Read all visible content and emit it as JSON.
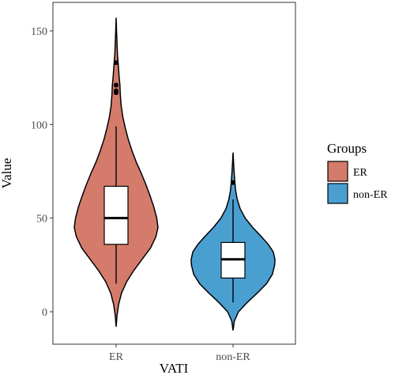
{
  "chart_data": {
    "type": "violin",
    "title": "",
    "xlabel": "VATI",
    "ylabel": "Value",
    "categories": [
      "ER",
      "non-ER"
    ],
    "ylim": [
      -15,
      160
    ],
    "yticks": [
      0,
      50,
      100,
      150
    ],
    "grid": false,
    "legend": {
      "title": "Groups",
      "position": "right",
      "entries": [
        "ER",
        "non-ER"
      ]
    },
    "series": [
      {
        "name": "ER",
        "color": "#d47b6b",
        "box": {
          "lower_whisker": 15,
          "q1": 36,
          "median": 50,
          "q3": 67,
          "upper_whisker": 99
        },
        "outliers": [
          117,
          118,
          121,
          121,
          133
        ],
        "density": [
          [
            -8,
            0.0
          ],
          [
            -2,
            0.02
          ],
          [
            4,
            0.06
          ],
          [
            10,
            0.13
          ],
          [
            16,
            0.25
          ],
          [
            22,
            0.42
          ],
          [
            28,
            0.62
          ],
          [
            34,
            0.82
          ],
          [
            40,
            0.95
          ],
          [
            45,
            1.0
          ],
          [
            50,
            0.97
          ],
          [
            56,
            0.9
          ],
          [
            62,
            0.81
          ],
          [
            68,
            0.71
          ],
          [
            74,
            0.6
          ],
          [
            80,
            0.48
          ],
          [
            86,
            0.38
          ],
          [
            92,
            0.29
          ],
          [
            98,
            0.22
          ],
          [
            104,
            0.16
          ],
          [
            110,
            0.12
          ],
          [
            116,
            0.1
          ],
          [
            121,
            0.09
          ],
          [
            126,
            0.07
          ],
          [
            132,
            0.05
          ],
          [
            138,
            0.03
          ],
          [
            144,
            0.02
          ],
          [
            150,
            0.01
          ],
          [
            157,
            0.0
          ]
        ]
      },
      {
        "name": "non-ER",
        "color": "#4a9fd1",
        "box": {
          "lower_whisker": 5,
          "q1": 18,
          "median": 28,
          "q3": 37,
          "upper_whisker": 60
        },
        "outliers": [
          69
        ],
        "density": [
          [
            -10,
            0.0
          ],
          [
            -5,
            0.03
          ],
          [
            0,
            0.13
          ],
          [
            5,
            0.34
          ],
          [
            10,
            0.58
          ],
          [
            15,
            0.8
          ],
          [
            20,
            0.94
          ],
          [
            25,
            0.995
          ],
          [
            28,
            1.0
          ],
          [
            32,
            0.96
          ],
          [
            36,
            0.84
          ],
          [
            40,
            0.68
          ],
          [
            45,
            0.47
          ],
          [
            50,
            0.29
          ],
          [
            55,
            0.17
          ],
          [
            60,
            0.1
          ],
          [
            65,
            0.06
          ],
          [
            70,
            0.04
          ],
          [
            75,
            0.025
          ],
          [
            80,
            0.012
          ],
          [
            85,
            0.0
          ]
        ]
      }
    ]
  }
}
